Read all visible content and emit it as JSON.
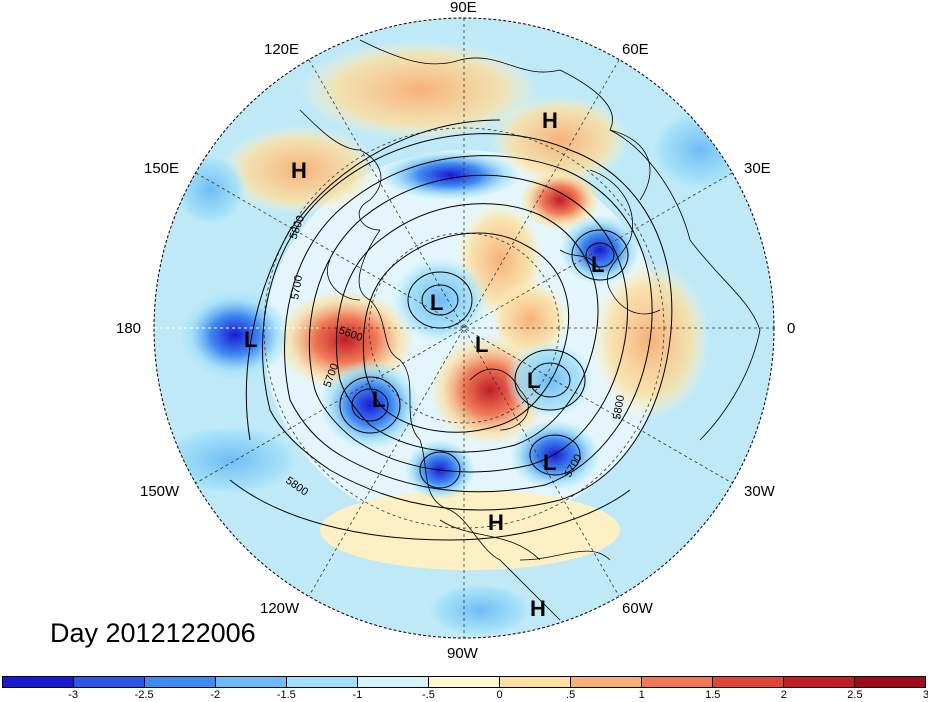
{
  "title": "Day 2012122006",
  "lon_labels": [
    "90E",
    "60E",
    "30E",
    "0",
    "30W",
    "60W",
    "90W",
    "120W",
    "150W",
    "180",
    "150E",
    "120E"
  ],
  "pressure_centers": [
    {
      "type": "H",
      "id": "h1"
    },
    {
      "type": "H",
      "id": "h2"
    },
    {
      "type": "H",
      "id": "h3"
    },
    {
      "type": "H",
      "id": "h4"
    },
    {
      "type": "L",
      "id": "l1"
    },
    {
      "type": "L",
      "id": "l2"
    },
    {
      "type": "L",
      "id": "l3"
    },
    {
      "type": "L",
      "id": "l4"
    },
    {
      "type": "L",
      "id": "l5"
    },
    {
      "type": "L",
      "id": "l6"
    },
    {
      "type": "L",
      "id": "l7"
    }
  ],
  "contour_labels": [
    "5800",
    "5700",
    "5600",
    "5700",
    "5700",
    "5800",
    "5800"
  ],
  "colorbar": {
    "colors": [
      "#1a1ad6",
      "#2a57e8",
      "#3f8bf0",
      "#6fbbf5",
      "#a0e0f8",
      "#d6f3fb",
      "#fdf7d2",
      "#fde0a0",
      "#f7b079",
      "#f07a58",
      "#e04535",
      "#c21d27",
      "#9e0a1e"
    ],
    "ticks": [
      "-3",
      "-2.5",
      "-2",
      "-1.5",
      "-1",
      "-.5",
      "0",
      ".5",
      "1",
      "1.5",
      "2",
      "2.5",
      "3"
    ]
  }
}
